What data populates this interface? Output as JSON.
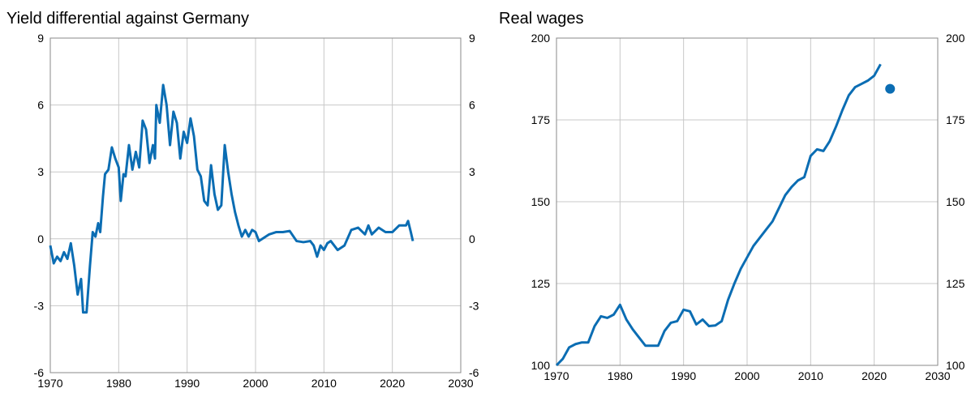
{
  "chart_data": [
    {
      "type": "line",
      "title": "Yield differential against Germany",
      "color": "#0b6db3",
      "xlim": [
        1970,
        2030
      ],
      "xticks": [
        1970,
        1980,
        1990,
        2000,
        2010,
        2020,
        2030
      ],
      "ylim": [
        -6,
        9
      ],
      "yticks": [
        -6,
        -3,
        0,
        3,
        6,
        9
      ],
      "grid": true,
      "right_axis": true,
      "series": [
        {
          "style": "line",
          "color": "#0b6db3",
          "x": [
            1970,
            1970.5,
            1971,
            1971.5,
            1972,
            1972.5,
            1973,
            1973.5,
            1974,
            1974.5,
            1974.8,
            1975.3,
            1975.8,
            1976.2,
            1976.6,
            1977,
            1977.3,
            1977.7,
            1978,
            1978.5,
            1979,
            1979.5,
            1980,
            1980.3,
            1980.7,
            1981,
            1981.5,
            1982,
            1982.5,
            1983,
            1983.5,
            1984,
            1984.5,
            1985,
            1985.3,
            1985.5,
            1986,
            1986.5,
            1987,
            1987.5,
            1988,
            1988.5,
            1989,
            1989.5,
            1990,
            1990.5,
            1991,
            1991.5,
            1992,
            1992.5,
            1993,
            1993.5,
            1994,
            1994.5,
            1995,
            1995.5,
            1996,
            1996.5,
            1997,
            1997.5,
            1998,
            1998.5,
            1999,
            1999.5,
            2000,
            2000.5,
            2001,
            2002,
            2003,
            2004,
            2005,
            2006,
            2007,
            2008,
            2008.5,
            2009,
            2009.5,
            2010,
            2010.5,
            2011,
            2012,
            2013,
            2014,
            2015,
            2016,
            2016.5,
            2017,
            2018,
            2019,
            2020,
            2021,
            2022,
            2022.3,
            2022.7,
            2023
          ],
          "values": [
            -0.3,
            -1.1,
            -0.8,
            -1.0,
            -0.6,
            -0.9,
            -0.2,
            -1.2,
            -2.5,
            -1.8,
            -3.3,
            -3.3,
            -1.2,
            0.3,
            0.1,
            0.7,
            0.3,
            1.9,
            2.9,
            3.1,
            4.1,
            3.6,
            3.2,
            1.7,
            2.9,
            2.8,
            4.2,
            3.1,
            3.9,
            3.2,
            5.3,
            4.9,
            3.4,
            4.2,
            3.6,
            6.0,
            5.2,
            6.9,
            6.0,
            4.2,
            5.7,
            5.2,
            3.6,
            4.8,
            4.3,
            5.4,
            4.6,
            3.1,
            2.8,
            1.7,
            1.5,
            3.3,
            2.0,
            1.3,
            1.5,
            4.2,
            3.0,
            2.0,
            1.2,
            0.6,
            0.1,
            0.4,
            0.1,
            0.4,
            0.3,
            -0.1,
            0.0,
            0.2,
            0.3,
            0.3,
            0.35,
            -0.1,
            -0.15,
            -0.1,
            -0.3,
            -0.8,
            -0.3,
            -0.5,
            -0.2,
            -0.1,
            -0.5,
            -0.3,
            0.4,
            0.5,
            0.2,
            0.6,
            0.2,
            0.5,
            0.3,
            0.3,
            0.6,
            0.6,
            0.8,
            0.3,
            -0.1
          ]
        }
      ]
    },
    {
      "type": "line",
      "title": "Real wages",
      "color": "#0b6db3",
      "xlim": [
        1970,
        2030
      ],
      "xticks": [
        1970,
        1980,
        1990,
        2000,
        2010,
        2020,
        2030
      ],
      "ylim": [
        100,
        200
      ],
      "yticks": [
        100,
        125,
        150,
        175,
        200
      ],
      "grid": true,
      "right_axis": true,
      "series": [
        {
          "style": "line",
          "color": "#0b6db3",
          "x": [
            1970,
            1971,
            1972,
            1973,
            1974,
            1975,
            1976,
            1977,
            1978,
            1979,
            1980,
            1981,
            1982,
            1983,
            1984,
            1985,
            1986,
            1987,
            1988,
            1989,
            1990,
            1991,
            1992,
            1993,
            1994,
            1995,
            1996,
            1997,
            1998,
            1999,
            2000,
            2001,
            2002,
            2003,
            2004,
            2005,
            2006,
            2007,
            2008,
            2009,
            2010,
            2011,
            2012,
            2013,
            2014,
            2015,
            2016,
            2017,
            2018,
            2019,
            2020,
            2021
          ],
          "values": [
            100,
            102,
            105.5,
            106.5,
            107,
            107,
            112,
            115,
            114.5,
            115.5,
            118.5,
            114,
            111,
            108.5,
            106,
            106,
            106,
            110.5,
            113,
            113.5,
            117,
            116.5,
            112.5,
            114,
            112,
            112.2,
            113.5,
            120,
            125,
            129.5,
            133,
            136.5,
            139,
            141.5,
            144,
            148,
            152,
            154.5,
            156.5,
            157.5,
            164,
            166,
            165.5,
            168.5,
            173,
            178,
            182.5,
            185,
            186,
            187,
            188.5,
            192
          ]
        },
        {
          "style": "marker",
          "color": "#0b6db3",
          "x": [
            2022.5
          ],
          "values": [
            184.5
          ]
        }
      ]
    }
  ]
}
